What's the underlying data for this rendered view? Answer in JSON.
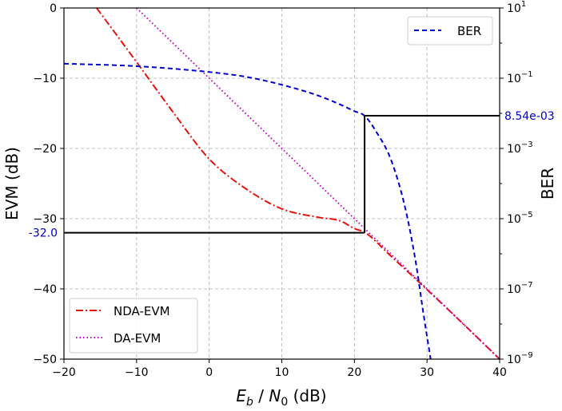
{
  "chart_data": {
    "type": "line",
    "xlabel_main": "E",
    "xlabel_sub_b": "b",
    "xlabel_sep": " / ",
    "xlabel_N": "N",
    "xlabel_sub_0": "0",
    "xlabel_unit": " (dB)",
    "ylabel_left": "EVM (dB)",
    "ylabel_right": "BER",
    "xlim": [
      -20,
      40
    ],
    "ylim_left": [
      -50,
      0
    ],
    "ylim_right_log10": [
      -9,
      1
    ],
    "right_axis_scale": "log",
    "grid": true,
    "x_ticks": [
      "−20",
      "−10",
      "0",
      "10",
      "20",
      "30",
      "40"
    ],
    "y_left_ticks": [
      "0",
      "−10",
      "−20",
      "−30",
      "−40",
      "−50"
    ],
    "y_right_ticks": [
      {
        "base": "10",
        "exp": "1"
      },
      {
        "base": "10",
        "exp": "−1"
      },
      {
        "base": "10",
        "exp": "−3"
      },
      {
        "base": "10",
        "exp": "−5"
      },
      {
        "base": "10",
        "exp": "−7"
      },
      {
        "base": "10",
        "exp": "−9"
      }
    ],
    "series": [
      {
        "name": "NDA-EVM",
        "axis": "left",
        "color": "#e8120c",
        "style": "dashdot",
        "x": [
          -15.5,
          -10,
          -5,
          0,
          5,
          10,
          15,
          18,
          20,
          21.5,
          25,
          30,
          35,
          40
        ],
        "y": [
          0,
          -7.7,
          -14.8,
          -21.5,
          -25.7,
          -28.6,
          -29.8,
          -30.3,
          -31.4,
          -32.0,
          -35.3,
          -40.1,
          -45.0,
          -50.0
        ]
      },
      {
        "name": "DA-EVM",
        "axis": "left",
        "color": "#bf00bf",
        "style": "dotted",
        "x": [
          -10,
          0,
          10,
          20,
          25,
          30,
          40
        ],
        "y": [
          0,
          -10,
          -20,
          -30,
          -35,
          -40,
          -50
        ]
      },
      {
        "name": "BER",
        "axis": "right",
        "color": "#0000cc",
        "style": "dashed",
        "x": [
          -20,
          -10,
          0,
          5,
          10,
          15,
          18,
          20,
          21.4,
          23,
          25,
          27,
          28.5,
          29.5,
          30.5
        ],
        "y": [
          0.26,
          0.22,
          0.15,
          0.11,
          0.065,
          0.032,
          0.018,
          0.0115,
          0.00854,
          0.003,
          0.0005,
          2e-05,
          5e-07,
          2e-08,
          1e-09
        ]
      }
    ],
    "annotations": {
      "evm_threshold_label": "-32.0",
      "evm_threshold_value": -32.0,
      "ber_threshold_label": "8.54e-03",
      "ber_threshold_value": 0.00854,
      "crossing_x": 21.4
    },
    "legend_upper_right": [
      "BER"
    ],
    "legend_lower_left": [
      "NDA-EVM",
      "DA-EVM"
    ]
  }
}
